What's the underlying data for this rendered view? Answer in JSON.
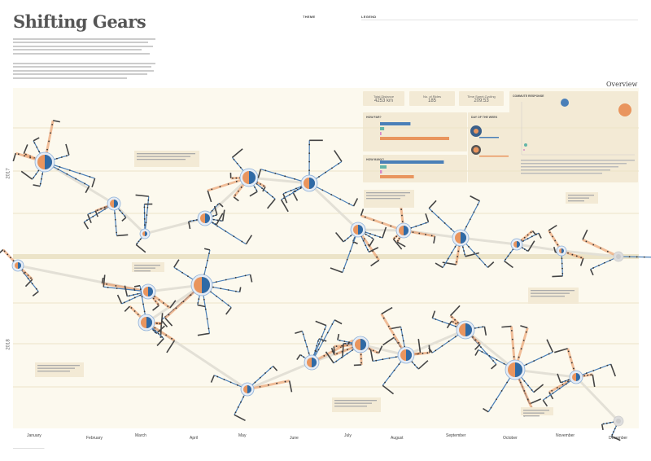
{
  "title": "Shifting Gears",
  "sections": {
    "theme": "THEME",
    "legend": "LEGEND",
    "overview": "Overview"
  },
  "overview": {
    "stats": [
      {
        "label": "Total Distance",
        "value": "4253 km"
      },
      {
        "label": "No. of Rides",
        "value": "185"
      },
      {
        "label": "Time Spent Cycling",
        "value": "209:53"
      }
    ],
    "how_far": "HOW FAR?",
    "how_many": "HOW MANY?",
    "day_of_week": "DAY OF THE WEEK",
    "scatter_title": "COMMUTE RESPONSE",
    "colors": {
      "commute": "#4a7fb8",
      "errand": "#63b5a8",
      "leisure": "#d98ac6",
      "workout": "#e9955e"
    }
  },
  "chart_data": {
    "type": "network-timeline",
    "years": [
      "2017",
      "2018"
    ],
    "months": [
      "January",
      "February",
      "March",
      "April",
      "May",
      "June",
      "July",
      "August",
      "September",
      "October",
      "November",
      "December"
    ],
    "bar_far": [
      0.44,
      0.06,
      0.02,
      1.0
    ],
    "bar_many": [
      0.98,
      0.1,
      0.03,
      0.52
    ]
  }
}
